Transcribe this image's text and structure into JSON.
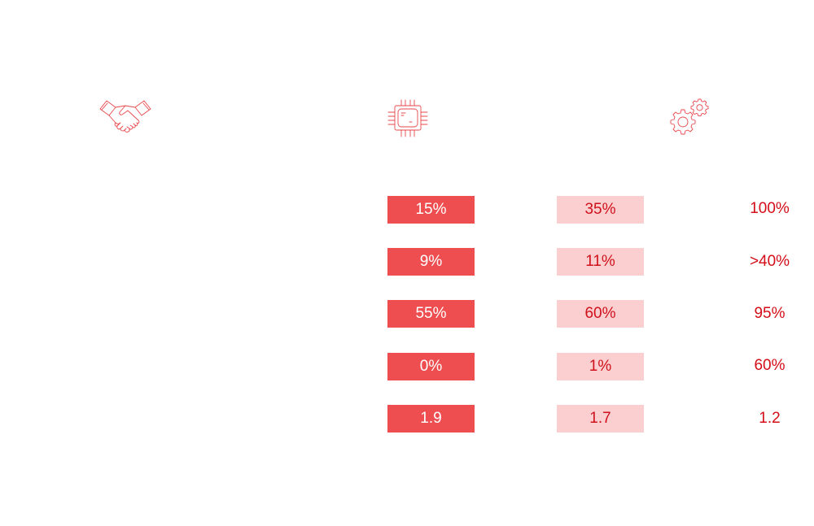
{
  "icons": {
    "col1": "handshake-icon",
    "col2": "chip-icon",
    "col3": "gears-icon"
  },
  "colors": {
    "accent": "#ee4e50",
    "accent_light": "#fbcfd0",
    "text_red": "#d40d18"
  },
  "rows": [
    {
      "col1": "15%",
      "col2": "35%",
      "col3": "100%"
    },
    {
      "col1": "9%",
      "col2": "11%",
      "col3": ">40%"
    },
    {
      "col1": "55%",
      "col2": "60%",
      "col3": "95%"
    },
    {
      "col1": "0%",
      "col2": "1%",
      "col3": "60%"
    },
    {
      "col1": "1.9",
      "col2": "1.7",
      "col3": "1.2"
    }
  ]
}
